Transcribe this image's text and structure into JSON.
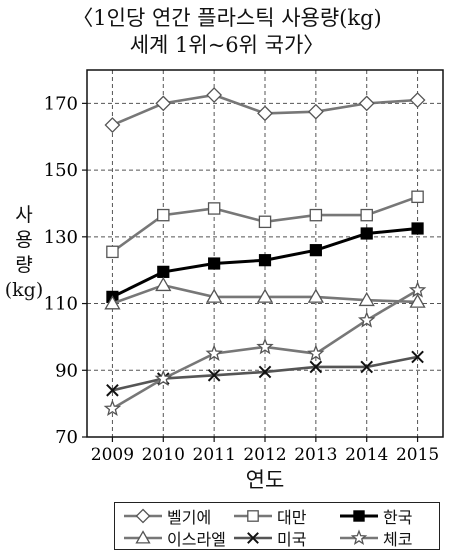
{
  "chart_data": {
    "type": "line",
    "title": "〈1인당 연간 플라스틱 사용량(kg)",
    "subtitle": "세계 1위~6위 국가〉",
    "ylabel_lines": [
      "사",
      "용",
      "량",
      "(kg)"
    ],
    "xlabel": "연도",
    "x": [
      "2009",
      "2010",
      "2011",
      "2012",
      "2013",
      "2014",
      "2015"
    ],
    "ylim": [
      70,
      180
    ],
    "yticks": [
      70,
      90,
      110,
      130,
      150,
      170
    ],
    "grid": true,
    "legend_position": "bottom",
    "series": [
      {
        "name": "벨기에",
        "marker": "diamond-open",
        "color": "#777777",
        "values": [
          163.5,
          170,
          172.5,
          167,
          167.5,
          170,
          171
        ]
      },
      {
        "name": "대만",
        "marker": "square-open",
        "color": "#777777",
        "values": [
          125.5,
          136.5,
          138.5,
          134.5,
          136.5,
          136.5,
          142
        ]
      },
      {
        "name": "한국",
        "marker": "square-filled",
        "color": "#000000",
        "values": [
          112,
          119.5,
          122,
          123,
          126,
          131,
          132.5
        ]
      },
      {
        "name": "이스라엘",
        "marker": "triangle-open",
        "color": "#777777",
        "values": [
          110,
          115.5,
          112,
          112,
          112,
          111,
          110.5
        ]
      },
      {
        "name": "미국",
        "marker": "x",
        "color": "#555555",
        "values": [
          84,
          87.5,
          88.5,
          89.5,
          91,
          91,
          94
        ]
      },
      {
        "name": "체코",
        "marker": "star-open",
        "color": "#777777",
        "values": [
          78.5,
          87.5,
          95,
          97,
          95,
          105,
          114
        ]
      }
    ]
  }
}
